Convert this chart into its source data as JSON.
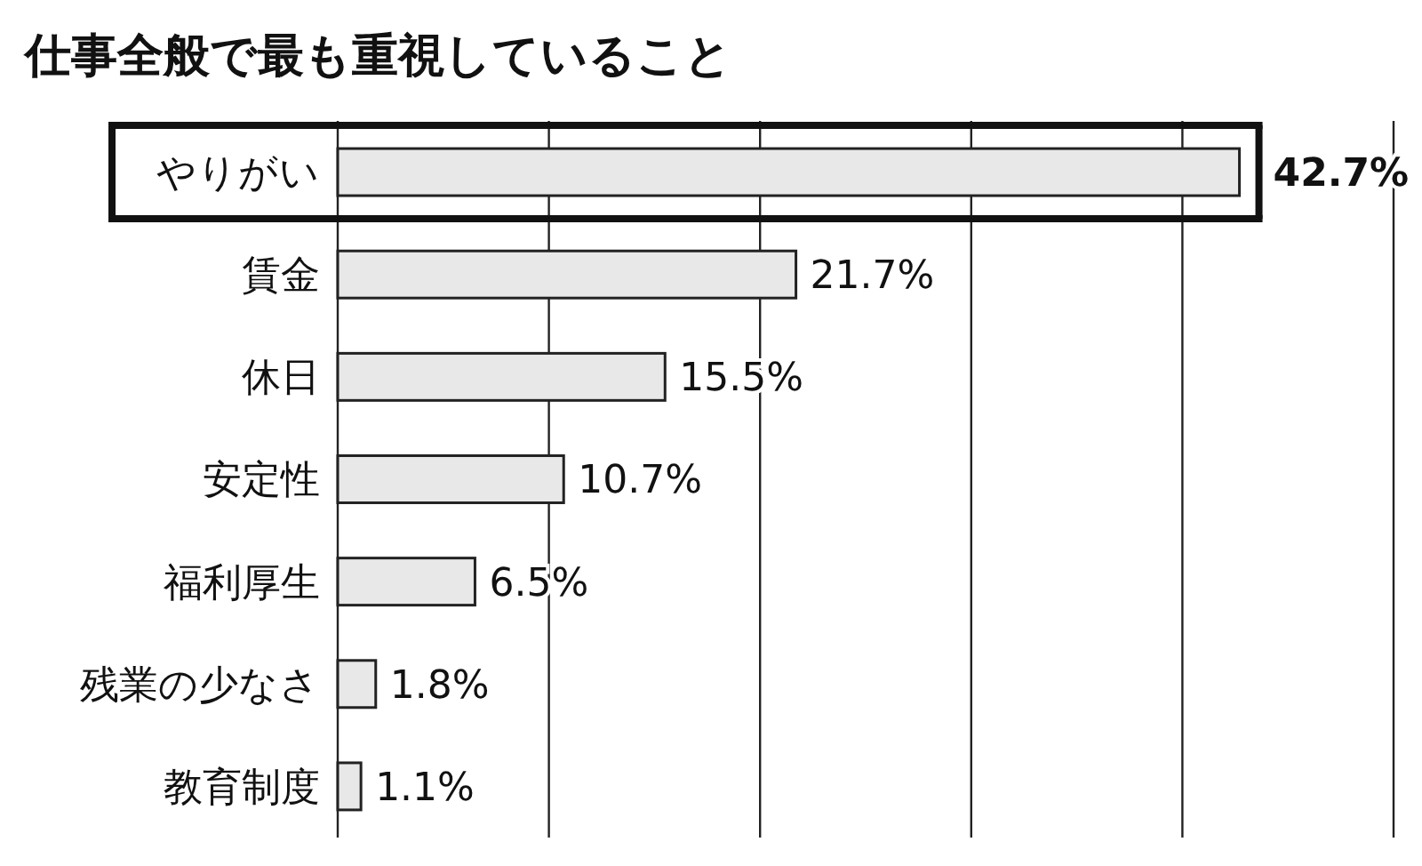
{
  "chart_data": {
    "type": "bar",
    "orientation": "horizontal",
    "title": "仕事全般で最も重視していること",
    "categories": [
      "やりがい",
      "賃金",
      "休日",
      "安定性",
      "福利厚生",
      "残業の少なさ",
      "教育制度"
    ],
    "values": [
      42.7,
      21.7,
      15.5,
      10.7,
      6.5,
      1.8,
      1.1
    ],
    "value_labels": [
      "42.7%",
      "21.7%",
      "15.5%",
      "10.7%",
      "6.5%",
      "1.8%",
      "1.1%"
    ],
    "color": "#e8e8e8",
    "xlim": [
      0,
      50
    ],
    "xticks": [
      {
        "value": 0,
        "label": null
      },
      {
        "value": 10,
        "label": null
      },
      {
        "value": 20,
        "label": null
      },
      {
        "value": 30,
        "label": null
      },
      {
        "value": 40,
        "label": null
      },
      {
        "value": 50,
        "label": null
      }
    ],
    "grid": "x",
    "tick_labels": "y"
  }
}
